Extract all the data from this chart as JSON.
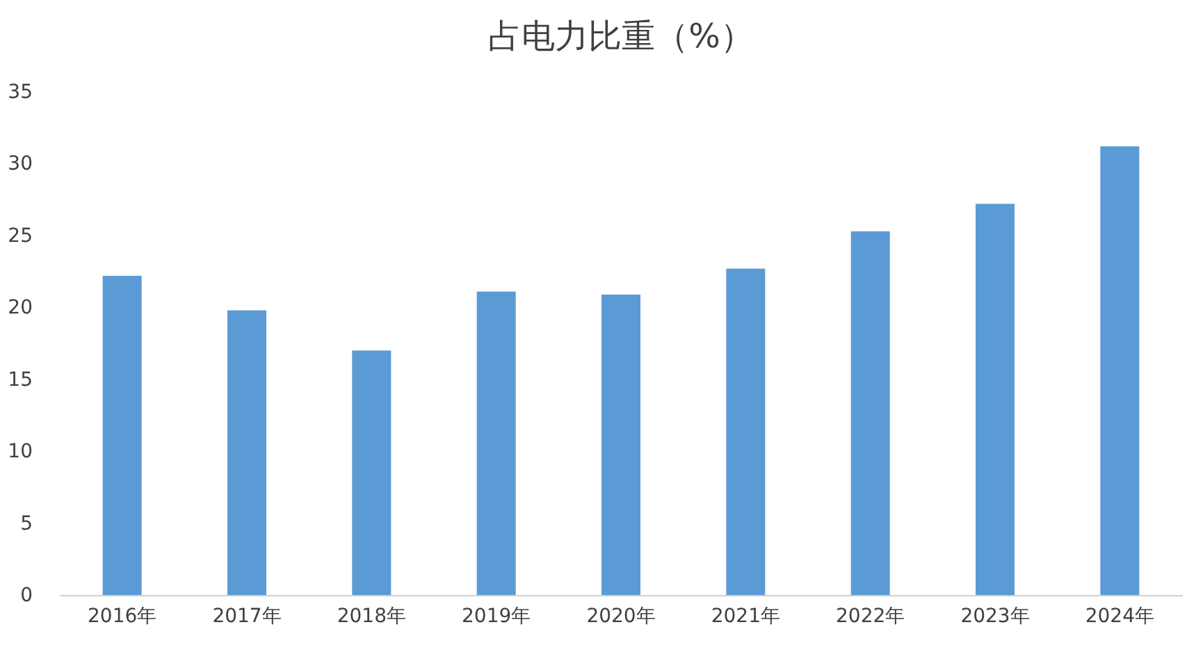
{
  "chart_data": {
    "type": "bar",
    "title": "占电力比重（%）",
    "categories": [
      "2016年",
      "2017年",
      "2018年",
      "2019年",
      "2020年",
      "2021年",
      "2022年",
      "2023年",
      "2024年"
    ],
    "values": [
      22.2,
      19.8,
      17.0,
      21.1,
      20.9,
      22.7,
      25.3,
      27.2,
      31.2
    ],
    "color": "#5b9bd5",
    "ylim": [
      0,
      35
    ],
    "yticks": [
      0,
      5,
      10,
      15,
      20,
      25,
      30,
      35
    ],
    "grid": false
  }
}
